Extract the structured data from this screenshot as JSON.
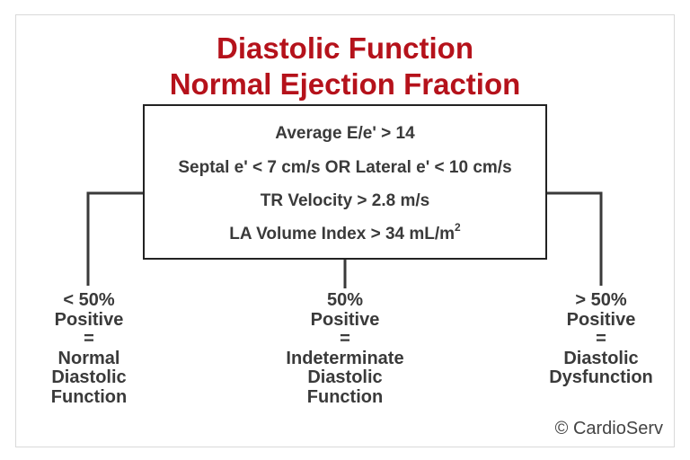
{
  "title": {
    "line1": "Diastolic Function",
    "line2": "Normal Ejection Fraction"
  },
  "criteria": [
    "Average E/e' > 14",
    "Septal e' < 7 cm/s OR Lateral e' < 10 cm/s",
    "TR Velocity > 2.8 m/s",
    "LA Volume Index > 34  mL/m"
  ],
  "criteria_superscript": "2",
  "outcomes": {
    "left": [
      "< 50%",
      "Positive",
      "=",
      "Normal",
      "Diastolic",
      "Function"
    ],
    "center": [
      "50%",
      "Positive",
      "=",
      "Indeterminate",
      "Diastolic",
      "Function"
    ],
    "right": [
      "> 50%",
      "Positive",
      "=",
      "Diastolic",
      "Dysfunction"
    ]
  },
  "copyright": "© CardioServ",
  "colors": {
    "title": "#b5121b",
    "text": "#3a3a3a",
    "lines": "#3a3a3a",
    "box_border": "#222222"
  }
}
